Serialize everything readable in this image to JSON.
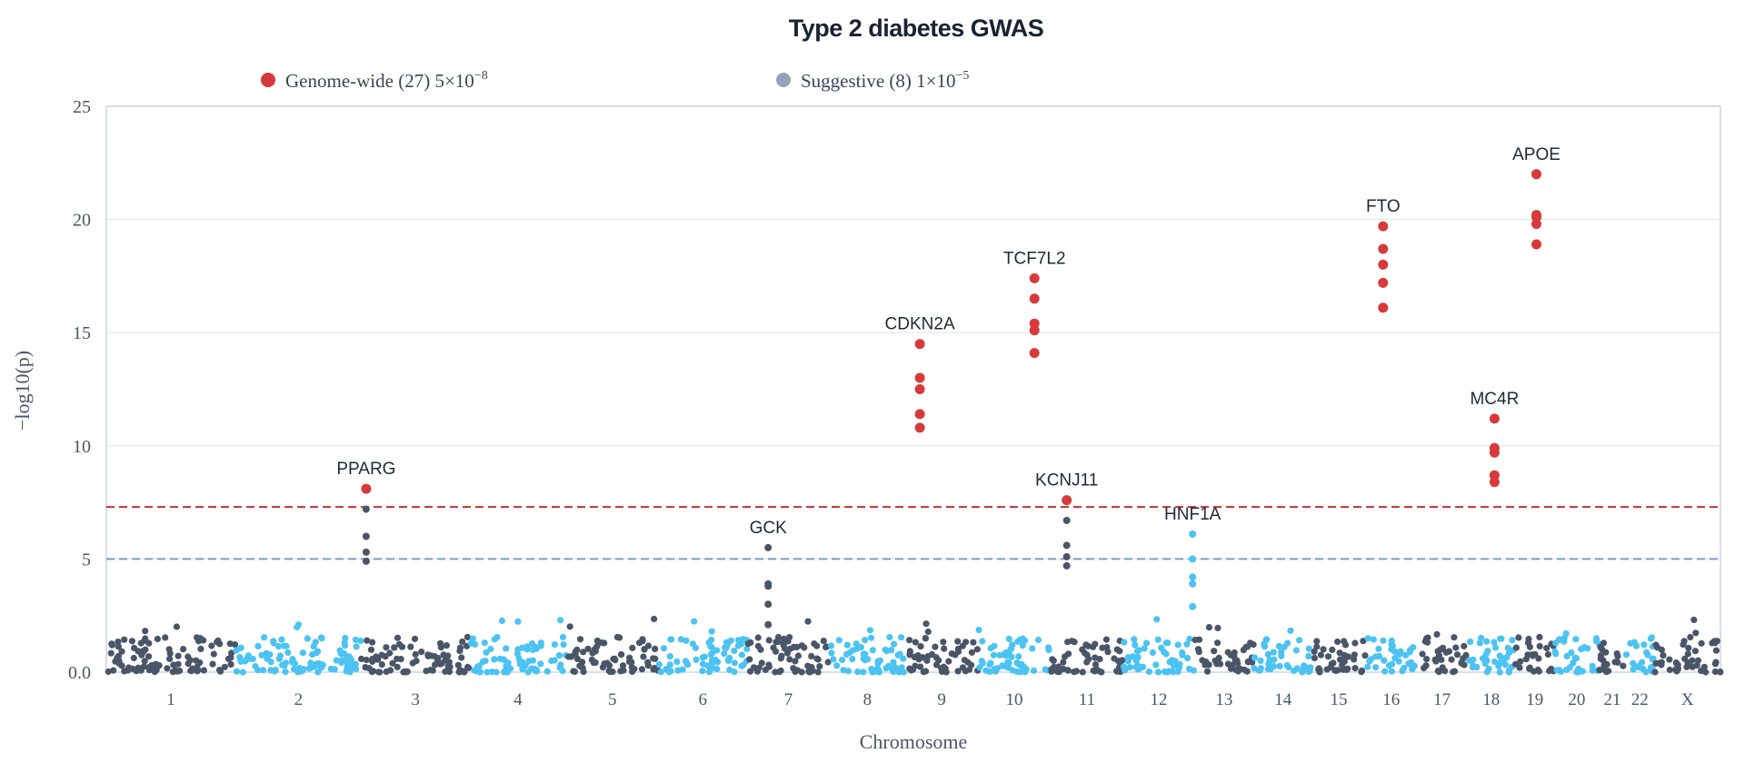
{
  "chart_data": {
    "type": "scatter",
    "title": "Type 2 diabetes GWAS",
    "xlabel": "Chromosome",
    "ylabel": "−log10(p)",
    "ylim": [
      0,
      25
    ],
    "yticks": [
      0,
      5,
      10,
      15,
      20,
      25
    ],
    "ytick_labels": [
      "0.0",
      "5",
      "10",
      "15",
      "20",
      "25"
    ],
    "grid": true,
    "legend_position": "top",
    "legend": [
      {
        "key": "genome_wide",
        "label": "Genome-wide (27) 5×10",
        "exp": "−8",
        "color": "#d63a3a"
      },
      {
        "key": "suggestive",
        "label": "Suggestive (8) 1×10",
        "exp": "−5",
        "color": "#94a3b8"
      }
    ],
    "thresholds": [
      {
        "name": "genome_wide",
        "value": 7.3,
        "color": "#c53030"
      },
      {
        "name": "suggestive",
        "value": 5.0,
        "color": "#7f9cc0"
      }
    ],
    "chromosome_colors": [
      "#4a5568",
      "#4cc3f2"
    ],
    "chromosomes": [
      {
        "label": "1",
        "start": 0,
        "end": 8
      },
      {
        "label": "2",
        "start": 8,
        "end": 15.8
      },
      {
        "label": "3",
        "start": 15.8,
        "end": 22.5
      },
      {
        "label": "4",
        "start": 22.5,
        "end": 28.5
      },
      {
        "label": "5",
        "start": 28.5,
        "end": 34.2
      },
      {
        "label": "6",
        "start": 34.2,
        "end": 39.7
      },
      {
        "label": "7",
        "start": 39.7,
        "end": 44.8
      },
      {
        "label": "8",
        "start": 44.8,
        "end": 49.5
      },
      {
        "label": "9",
        "start": 49.5,
        "end": 54
      },
      {
        "label": "10",
        "start": 54,
        "end": 58.5
      },
      {
        "label": "11",
        "start": 58.5,
        "end": 63
      },
      {
        "label": "12",
        "start": 63,
        "end": 67.4
      },
      {
        "label": "13",
        "start": 67.4,
        "end": 71.1
      },
      {
        "label": "14",
        "start": 71.1,
        "end": 74.7
      },
      {
        "label": "15",
        "start": 74.7,
        "end": 78
      },
      {
        "label": "16",
        "start": 78,
        "end": 81.2
      },
      {
        "label": "17",
        "start": 81.2,
        "end": 84.3
      },
      {
        "label": "18",
        "start": 84.3,
        "end": 87.3
      },
      {
        "label": "19",
        "start": 87.3,
        "end": 89.7
      },
      {
        "label": "20",
        "start": 89.7,
        "end": 92.5
      },
      {
        "label": "21",
        "start": 92.5,
        "end": 94.1
      },
      {
        "label": "22",
        "start": 94.1,
        "end": 95.9
      },
      {
        "label": "X",
        "start": 95.9,
        "end": 100
      }
    ],
    "hits": [
      {
        "gene": "PPARG",
        "x": 16.1,
        "significance": "genome_wide",
        "values": [
          8.1,
          7.2,
          6.0,
          5.3,
          4.9
        ]
      },
      {
        "gene": "GCK",
        "x": 41.0,
        "significance": "suggestive",
        "values": [
          5.5,
          3.9,
          3.8,
          3.0,
          2.1
        ]
      },
      {
        "gene": "CDKN2A",
        "x": 50.4,
        "significance": "genome_wide",
        "values": [
          14.5,
          13.0,
          12.5,
          11.4,
          10.8
        ]
      },
      {
        "gene": "TCF7L2",
        "x": 57.5,
        "significance": "genome_wide",
        "values": [
          17.4,
          16.5,
          15.4,
          15.1,
          14.1
        ]
      },
      {
        "gene": "KCNJ11",
        "x": 59.5,
        "significance": "genome_wide",
        "values": [
          7.6,
          6.7,
          5.6,
          5.1,
          4.7
        ]
      },
      {
        "gene": "HNF1A",
        "x": 67.3,
        "significance": "suggestive",
        "values": [
          6.1,
          5.0,
          4.2,
          3.9,
          2.9
        ]
      },
      {
        "gene": "FTO",
        "x": 79.1,
        "significance": "genome_wide",
        "values": [
          19.7,
          18.7,
          18.0,
          17.2,
          16.1
        ]
      },
      {
        "gene": "MC4R",
        "x": 86.0,
        "significance": "genome_wide",
        "values": [
          11.2,
          9.9,
          9.7,
          8.7,
          8.4
        ]
      },
      {
        "gene": "APOE",
        "x": 88.6,
        "significance": "genome_wide",
        "values": [
          22.0,
          20.2,
          20.1,
          19.8,
          18.9
        ]
      }
    ],
    "background_points_per_chromosome_unit": 12
  }
}
